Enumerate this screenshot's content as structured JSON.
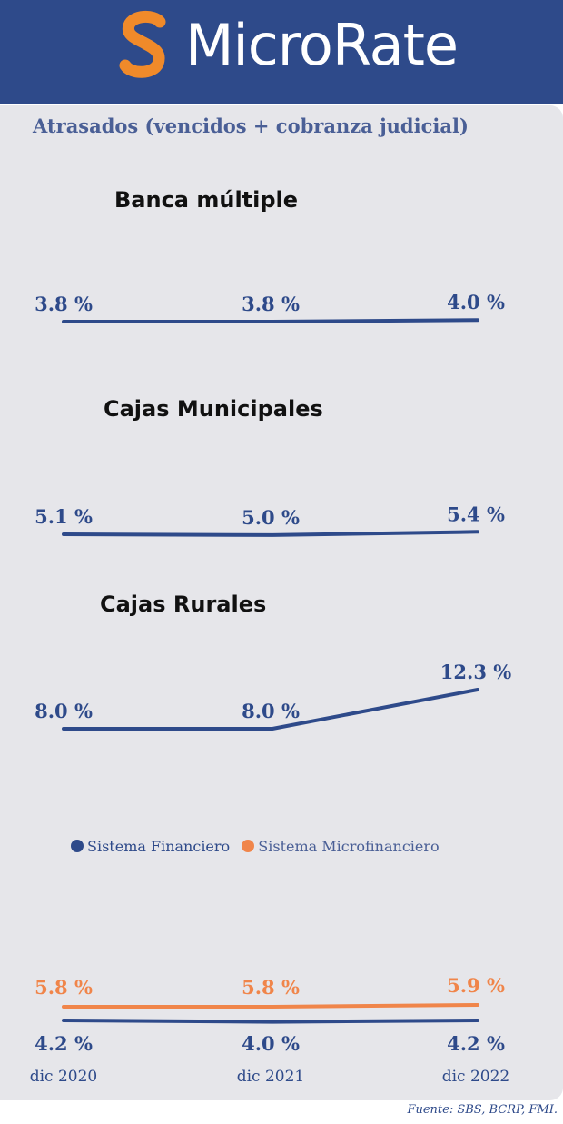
{
  "header": {
    "brand": "MicroRate",
    "logo_letter": "S",
    "logo_icon": "microrate-s-logo",
    "logo_color": "#f08a2a",
    "background": "#2e4a8a"
  },
  "title": "Atrasados (vencidos + cobranza judicial)",
  "colors": {
    "primary": "#2e4a8a",
    "secondary": "#f0854a"
  },
  "chart_data": [
    {
      "type": "line",
      "title": "Banca múltiple",
      "categories": [
        "dic 2020",
        "dic 2021",
        "dic 2022"
      ],
      "series": [
        {
          "values": [
            3.8,
            3.8,
            4.0
          ],
          "labels": [
            "3.8 %",
            "3.8 %",
            "4.0 %"
          ]
        }
      ],
      "xlabel": "",
      "ylabel": ""
    },
    {
      "type": "line",
      "title": "Cajas Municipales",
      "categories": [
        "dic 2020",
        "dic 2021",
        "dic 2022"
      ],
      "series": [
        {
          "values": [
            5.1,
            5.0,
            5.4
          ],
          "labels": [
            "5.1 %",
            "5.0 %",
            "5.4 %"
          ]
        }
      ],
      "xlabel": "",
      "ylabel": ""
    },
    {
      "type": "line",
      "title": "Cajas Rurales",
      "categories": [
        "dic 2020",
        "dic 2021",
        "dic 2022"
      ],
      "series": [
        {
          "values": [
            8.0,
            8.0,
            12.3
          ],
          "labels": [
            "8.0 %",
            "8.0 %",
            "12.3 %"
          ]
        }
      ],
      "xlabel": "",
      "ylabel": ""
    },
    {
      "type": "line",
      "title": "",
      "categories": [
        "dic 2020",
        "dic 2021",
        "dic 2022"
      ],
      "series": [
        {
          "name": "Sistema Financiero",
          "values": [
            4.2,
            4.0,
            4.2
          ],
          "labels": [
            "4.2 %",
            "4.0 %",
            "4.2 %"
          ]
        },
        {
          "name": "Sistema Microfinanciero",
          "values": [
            5.8,
            5.8,
            5.9
          ],
          "labels": [
            "5.8 %",
            "5.8 %",
            "5.9 %"
          ]
        }
      ],
      "legend": "top-left",
      "xlabel": "",
      "ylabel": ""
    }
  ],
  "source": "Fuente: SBS, BCRP, FMI."
}
